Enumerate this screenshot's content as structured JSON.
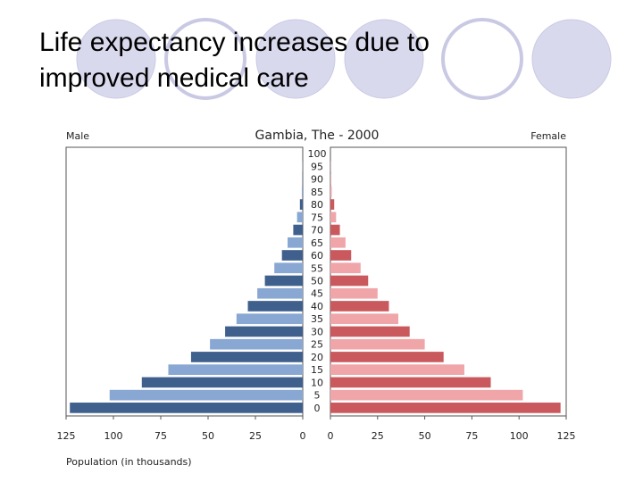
{
  "slide": {
    "title": "Life expectancy increases due to improved medical care"
  },
  "colors": {
    "decor_circle_fill": "#d9d9ee",
    "decor_circle_stroke": "#c9c9e4",
    "male_dark": "#3f5f8d",
    "male_light": "#88a7d2",
    "female_dark": "#c9595d",
    "female_light": "#f0a5a9"
  },
  "chart_data": {
    "type": "population-pyramid",
    "title": "Gambia, The - 2000",
    "left_label": "Male",
    "right_label": "Female",
    "xlabel": "Population (in thousands)",
    "xlim": [
      0,
      125
    ],
    "x_ticks": [
      125,
      100,
      75,
      50,
      25,
      0
    ],
    "age_groups": [
      "0",
      "5",
      "10",
      "15",
      "20",
      "25",
      "30",
      "35",
      "40",
      "45",
      "50",
      "55",
      "60",
      "65",
      "70",
      "75",
      "80",
      "85",
      "90",
      "95",
      "100"
    ],
    "series": [
      {
        "name": "Male",
        "values": [
          123,
          102,
          85,
          71,
          59,
          49,
          41,
          35,
          29,
          24,
          20,
          15,
          11,
          8,
          5,
          3,
          1.5,
          0.5,
          0.2,
          0.1,
          0
        ]
      },
      {
        "name": "Female",
        "values": [
          122,
          102,
          85,
          71,
          60,
          50,
          42,
          36,
          31,
          25,
          20,
          16,
          11,
          8,
          5,
          3,
          2,
          0.7,
          0.2,
          0.1,
          0
        ]
      }
    ]
  }
}
